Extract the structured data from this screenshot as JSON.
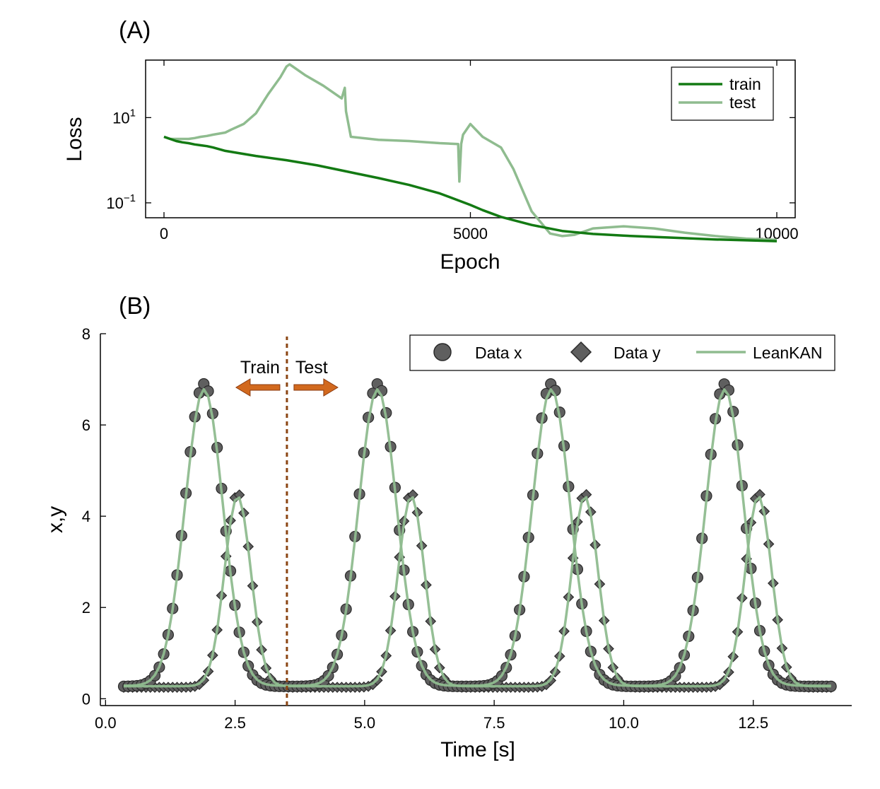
{
  "chart_data": [
    {
      "type": "line",
      "panel_label": "(A)",
      "xlabel": "Epoch",
      "ylabel": "Loss",
      "xlim": [
        -300,
        10300
      ],
      "ylim_log10": [
        -1.35,
        2.35
      ],
      "yscale": "log",
      "xticks": [
        0,
        5000,
        10000
      ],
      "xtick_labels": [
        "0",
        "5000",
        "10000"
      ],
      "yticks_log10": [
        1,
        -1
      ],
      "ytick_base": "10",
      "ytick_exponents": [
        "1",
        "−1"
      ],
      "legend": {
        "position": "top-right",
        "entries": [
          "train",
          "test"
        ]
      },
      "series": [
        {
          "name": "train",
          "color": "#137a13",
          "x": [
            0,
            100,
            200,
            300,
            400,
            500,
            600,
            700,
            800,
            1000,
            1500,
            2000,
            2500,
            3000,
            3500,
            4000,
            4500,
            5000,
            5200,
            5500,
            6000,
            6500,
            7000,
            7500,
            8000,
            8500,
            9000,
            9500,
            10000
          ],
          "log10_loss": [
            0.55,
            0.5,
            0.45,
            0.42,
            0.4,
            0.37,
            0.35,
            0.33,
            0.3,
            0.22,
            0.1,
            0.0,
            -0.12,
            -0.27,
            -0.42,
            -0.58,
            -0.78,
            -1.05,
            -1.17,
            -1.33,
            -1.52,
            -1.66,
            -1.73,
            -1.77,
            -1.8,
            -1.83,
            -1.86,
            -1.88,
            -1.9
          ]
        },
        {
          "name": "test",
          "color": "#8fbc8f",
          "x": [
            0,
            100,
            200,
            300,
            400,
            500,
            600,
            700,
            800,
            1000,
            1100,
            1300,
            1500,
            1700,
            1900,
            2000,
            2050,
            2100,
            2300,
            2600,
            2900,
            2950,
            2970,
            3050,
            3500,
            4000,
            4500,
            4800,
            4820,
            4850,
            4880,
            5000,
            5200,
            5500,
            5700,
            6000,
            6300,
            6500,
            6700,
            7000,
            7500,
            8000,
            8500,
            9000,
            9500,
            10000
          ],
          "log10_loss": [
            0.55,
            0.5,
            0.5,
            0.5,
            0.5,
            0.52,
            0.55,
            0.57,
            0.6,
            0.65,
            0.72,
            0.85,
            1.1,
            1.55,
            1.95,
            2.2,
            2.25,
            2.2,
            2.0,
            1.75,
            1.45,
            1.7,
            1.15,
            0.55,
            0.48,
            0.45,
            0.4,
            0.38,
            -0.5,
            0.38,
            0.6,
            0.85,
            0.55,
            0.3,
            -0.2,
            -1.2,
            -1.72,
            -1.78,
            -1.75,
            -1.6,
            -1.55,
            -1.6,
            -1.7,
            -1.78,
            -1.84,
            -1.87
          ]
        }
      ]
    },
    {
      "type": "line",
      "panel_label": "(B)",
      "xlabel": "Time [s]",
      "ylabel": "x,y",
      "xlim": [
        -0.1,
        14.4
      ],
      "ylim": [
        -0.15,
        8.0
      ],
      "xticks": [
        0.0,
        2.5,
        5.0,
        7.5,
        10.0,
        12.5
      ],
      "xtick_labels": [
        "0.0",
        "2.5",
        "5.0",
        "7.5",
        "10.0",
        "12.5"
      ],
      "yticks": [
        0,
        2,
        4,
        6,
        8
      ],
      "ytick_labels": [
        "0",
        "2",
        "4",
        "6",
        "8"
      ],
      "legend": {
        "position": "top-right",
        "entries": [
          "Data x",
          "Data y",
          "LeanKAN"
        ]
      },
      "annotations": {
        "split_x": 3.5,
        "train_label": "Train",
        "test_label": "Test"
      },
      "colors": {
        "marker_fill": "#5f5f5f",
        "marker_edge": "#2a2a2a",
        "line": "#8fbc8f",
        "split_line": "#8b4513",
        "arrow": "#d2691e",
        "arrow_text": "#a0522d",
        "legend_frame": "#000000"
      },
      "model": {
        "period": 3.35,
        "x_peak_times": [
          1.9,
          5.25,
          8.6,
          11.95
        ],
        "x_peak": 6.9,
        "x_width": 0.52,
        "x_base": 0.27,
        "y_lag": 0.65,
        "y_peak": 4.5,
        "y_width": 0.36,
        "y_base": 0.25,
        "t_start": 0.35,
        "t_end": 14.0,
        "points": 160
      }
    }
  ]
}
